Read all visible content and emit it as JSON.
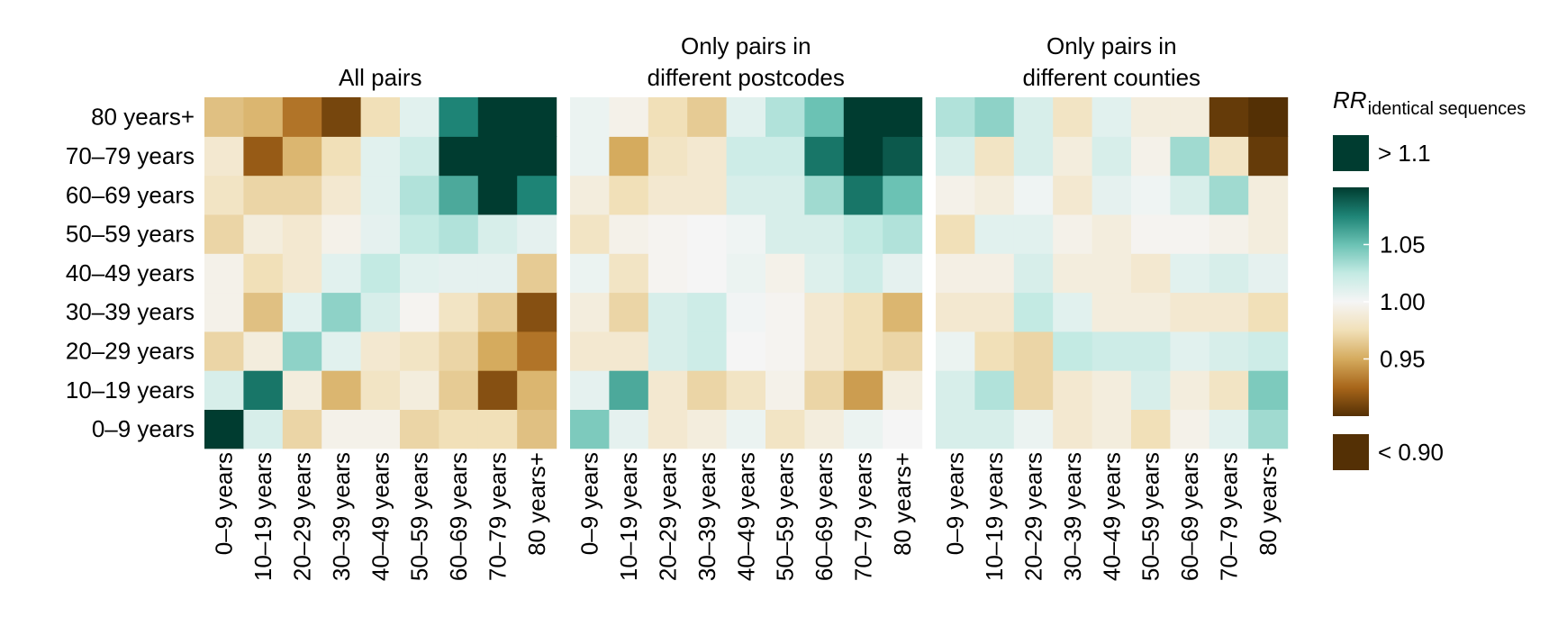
{
  "chart_data": {
    "type": "heatmap",
    "age_groups": [
      "0–9 years",
      "10–19 years",
      "20–29 years",
      "30–39 years",
      "40–49 years",
      "50–59 years",
      "60–69 years",
      "70–79 years",
      "80 years+"
    ],
    "panels": [
      {
        "title_line1": "",
        "title_line2": "All pairs",
        "values": [
          [
            1.1,
            1.015,
            0.97,
            0.995,
            0.995,
            0.97,
            0.975,
            0.975,
            0.96
          ],
          [
            1.015,
            1.08,
            0.99,
            0.955,
            0.98,
            0.99,
            0.965,
            0.915,
            0.955
          ],
          [
            0.97,
            0.99,
            1.04,
            1.01,
            0.985,
            0.98,
            0.97,
            0.95,
            0.93
          ],
          [
            0.995,
            0.96,
            1.01,
            1.04,
            1.015,
            0.998,
            0.98,
            0.965,
            0.915
          ],
          [
            0.995,
            0.975,
            0.985,
            1.01,
            1.025,
            1.01,
            1.008,
            1.008,
            0.965
          ],
          [
            0.97,
            0.99,
            0.985,
            0.995,
            1.008,
            1.025,
            1.03,
            1.015,
            1.008
          ],
          [
            0.98,
            0.97,
            0.97,
            0.985,
            1.01,
            1.03,
            1.06,
            1.11,
            1.075
          ],
          [
            0.985,
            0.92,
            0.955,
            0.975,
            1.01,
            1.02,
            1.11,
            1.11,
            1.11
          ],
          [
            0.96,
            0.955,
            0.93,
            0.91,
            0.975,
            1.01,
            1.075,
            1.11,
            1.11
          ]
        ]
      },
      {
        "title_line1": "Only pairs in",
        "title_line2": "different postcodes",
        "values": [
          [
            1.045,
            1.008,
            0.985,
            0.99,
            1.005,
            0.98,
            0.99,
            1.005,
            1.0
          ],
          [
            1.008,
            1.06,
            0.985,
            0.97,
            0.98,
            0.995,
            0.97,
            0.945,
            0.99
          ],
          [
            0.985,
            0.985,
            1.015,
            1.02,
            1.0,
            0.998,
            0.985,
            0.975,
            0.97
          ],
          [
            0.99,
            0.97,
            1.015,
            1.02,
            1.002,
            0.998,
            0.985,
            0.975,
            0.955
          ],
          [
            1.005,
            0.98,
            0.998,
            1.0,
            1.005,
            0.995,
            1.012,
            1.02,
            1.008
          ],
          [
            0.98,
            0.995,
            0.998,
            1.0,
            1.003,
            1.015,
            1.015,
            1.025,
            1.03
          ],
          [
            0.99,
            0.975,
            0.985,
            0.985,
            1.015,
            1.015,
            1.035,
            1.08,
            1.05
          ],
          [
            1.005,
            0.95,
            0.98,
            0.985,
            1.02,
            1.02,
            1.08,
            1.11,
            1.09
          ],
          [
            1.005,
            0.995,
            0.975,
            0.965,
            1.01,
            1.03,
            1.05,
            1.1,
            1.11
          ]
        ]
      },
      {
        "title_line1": "Only pairs in",
        "title_line2": "different counties",
        "values": [
          [
            1.015,
            1.015,
            1.005,
            0.985,
            0.99,
            0.975,
            0.995,
            1.01,
            1.035
          ],
          [
            1.015,
            1.03,
            0.97,
            0.985,
            0.99,
            1.015,
            0.99,
            0.98,
            1.045
          ],
          [
            1.005,
            0.975,
            0.97,
            1.025,
            1.02,
            1.02,
            1.01,
            1.015,
            1.02
          ],
          [
            0.985,
            0.985,
            1.025,
            1.01,
            0.99,
            0.99,
            0.985,
            0.985,
            0.975
          ],
          [
            0.993,
            0.993,
            1.015,
            0.99,
            0.99,
            0.985,
            1.01,
            1.015,
            1.008
          ],
          [
            0.975,
            1.01,
            1.01,
            0.995,
            0.99,
            0.998,
            0.998,
            0.995,
            0.99
          ],
          [
            0.995,
            0.99,
            1.003,
            0.985,
            1.008,
            1.003,
            1.015,
            1.035,
            0.99
          ],
          [
            1.015,
            0.98,
            1.015,
            0.99,
            1.015,
            0.995,
            1.035,
            0.98,
            0.905
          ],
          [
            1.03,
            1.04,
            1.015,
            0.98,
            1.01,
            0.99,
            0.99,
            0.905,
            0.895
          ]
        ]
      }
    ],
    "legend": {
      "title_main": "RR",
      "title_sub": "identical sequences",
      "high_label": "> 1.1",
      "low_label": "< 0.90",
      "ticks": [
        {
          "value": 1.05,
          "label": "1.05"
        },
        {
          "value": 1.0,
          "label": "1.00"
        },
        {
          "value": 0.95,
          "label": "0.95"
        }
      ],
      "range": [
        0.9,
        1.1
      ],
      "placement": "right"
    },
    "colors": {
      "stops": [
        {
          "v": 0.9,
          "c": "#543005"
        },
        {
          "v": 0.925,
          "c": "#a8661a"
        },
        {
          "v": 0.95,
          "c": "#d5ab5e"
        },
        {
          "v": 0.975,
          "c": "#f1e0b8"
        },
        {
          "v": 1.0,
          "c": "#f5f5f5"
        },
        {
          "v": 1.025,
          "c": "#c3eae3"
        },
        {
          "v": 1.05,
          "c": "#6bc2b4"
        },
        {
          "v": 1.075,
          "c": "#1e8476"
        },
        {
          "v": 1.1,
          "c": "#003c30"
        }
      ],
      "high": "#003c30",
      "low": "#543005"
    }
  }
}
